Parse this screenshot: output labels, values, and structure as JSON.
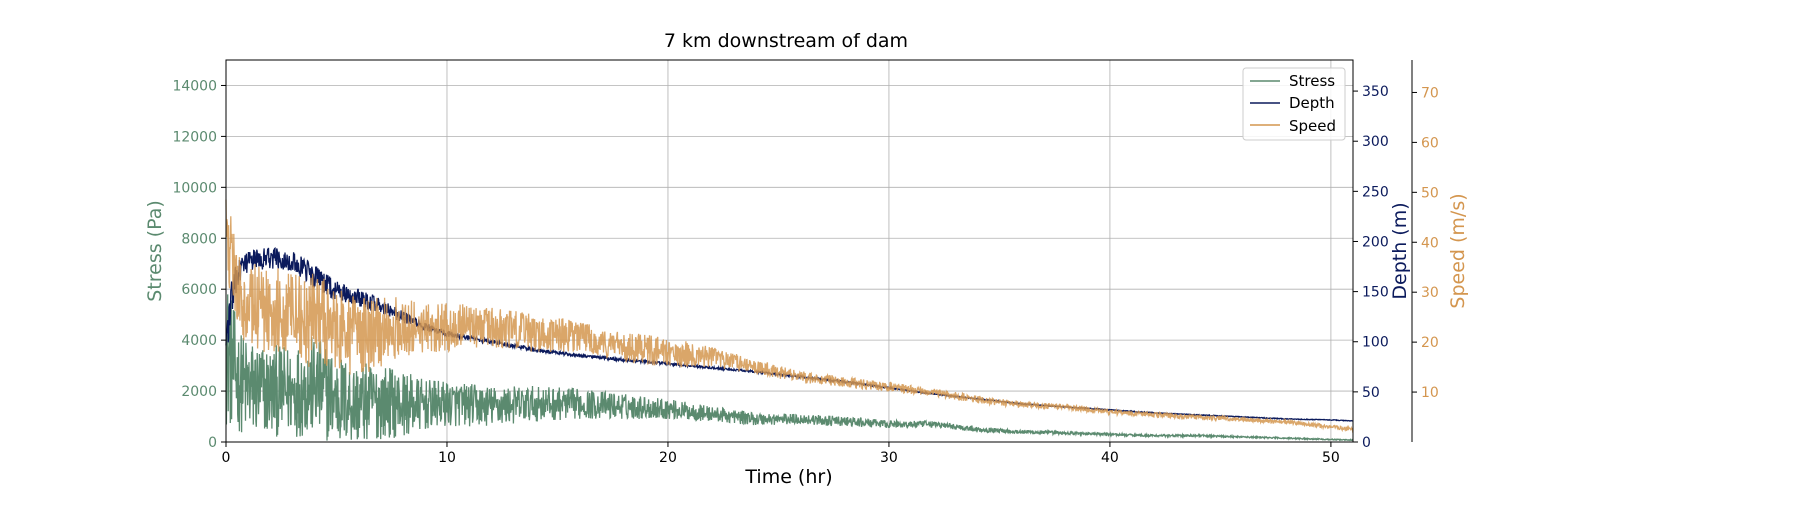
{
  "chart_data": {
    "type": "line",
    "title": "7 km downstream of dam",
    "xlabel": "Time (hr)",
    "xlim": [
      0,
      51
    ],
    "xticks": [
      "0",
      "10",
      "20",
      "30",
      "40",
      "50"
    ],
    "grid": true,
    "legend_position": "top-right",
    "axes": {
      "stress": {
        "label": "Stress (Pa)",
        "color": "#5b8a6f",
        "ylim": [
          0,
          15000
        ],
        "ticks": [
          "0",
          "2000",
          "4000",
          "6000",
          "8000",
          "10000",
          "12000",
          "14000"
        ]
      },
      "depth": {
        "label": "Depth (m)",
        "color": "#0b1a5c",
        "ylim": [
          0,
          381
        ],
        "ticks": [
          "0",
          "50",
          "100",
          "150",
          "200",
          "250",
          "300",
          "350"
        ]
      },
      "speed": {
        "label": "Speed (m/s)",
        "color": "#d4964f",
        "ylim": [
          0,
          76.5
        ],
        "ticks": [
          "10",
          "20",
          "30",
          "40",
          "50",
          "60",
          "70"
        ]
      }
    },
    "series": [
      {
        "name": "Stress",
        "axis": "stress",
        "color": "#5b8a6f",
        "x": [
          0,
          0.3,
          0.6,
          1,
          2,
          3,
          4,
          5,
          6,
          7,
          8,
          9,
          10,
          12,
          14,
          16,
          18,
          20,
          22,
          24,
          26,
          28,
          30,
          32,
          34,
          36,
          38,
          40,
          42,
          44,
          46,
          48,
          50,
          51
        ],
        "y": [
          3600,
          3000,
          2400,
          2100,
          2000,
          2000,
          2200,
          1700,
          1500,
          1600,
          1500,
          1450,
          1500,
          1400,
          1500,
          1500,
          1400,
          1300,
          1100,
          900,
          900,
          800,
          700,
          700,
          500,
          400,
          350,
          300,
          250,
          250,
          200,
          150,
          100,
          80
        ],
        "amp": [
          3000,
          2500,
          2000,
          2000,
          1800,
          1800,
          2000,
          1800,
          1600,
          1500,
          1300,
          1000,
          900,
          800,
          700,
          600,
          500,
          400,
          300,
          250,
          200,
          200,
          150,
          120,
          100,
          80,
          60,
          50,
          40,
          40,
          30,
          30,
          20,
          20
        ]
      },
      {
        "name": "Depth",
        "axis": "depth",
        "color": "#0b1a5c",
        "x": [
          0,
          0.3,
          0.6,
          1,
          2,
          3,
          4,
          5,
          6,
          7,
          8,
          9,
          10,
          12,
          14,
          16,
          18,
          20,
          22,
          24,
          26,
          28,
          30,
          32,
          34,
          36,
          38,
          40,
          42,
          44,
          46,
          48,
          50,
          51
        ],
        "y": [
          100,
          150,
          170,
          180,
          185,
          180,
          165,
          150,
          145,
          135,
          125,
          115,
          108,
          100,
          92,
          86,
          82,
          78,
          74,
          70,
          65,
          60,
          54,
          48,
          43,
          38,
          35,
          32,
          29,
          27,
          25,
          23,
          22,
          21
        ],
        "amp": [
          20,
          20,
          12,
          10,
          12,
          10,
          12,
          10,
          10,
          8,
          6,
          4,
          3,
          2,
          2,
          1.5,
          1.5,
          1.2,
          1,
          1,
          1,
          1,
          0.8,
          0.6,
          0.6,
          0.5,
          0.5,
          0.5,
          0.4,
          0.4,
          0.4,
          0.4,
          0.3,
          0.3
        ]
      },
      {
        "name": "Speed",
        "axis": "speed",
        "color": "#d4964f",
        "x": [
          0,
          0.3,
          0.6,
          1,
          2,
          3,
          4,
          5,
          6,
          7,
          8,
          9,
          10,
          12,
          14,
          16,
          18,
          20,
          22,
          24,
          26,
          28,
          30,
          32,
          34,
          36,
          38,
          40,
          42,
          44,
          46,
          48,
          50,
          51
        ],
        "y": [
          45,
          33,
          30,
          27,
          27,
          26,
          24,
          22,
          21,
          22,
          23,
          23,
          23,
          23,
          22,
          21,
          19,
          18,
          17,
          15,
          13,
          12,
          11,
          10,
          8.5,
          7.5,
          7,
          6,
          5.5,
          5,
          4.5,
          4,
          3,
          2.5
        ],
        "amp": [
          6,
          10,
          8,
          9,
          9,
          8,
          10,
          9,
          8,
          7,
          6,
          5,
          5,
          4,
          4,
          3,
          3,
          3,
          2,
          1.5,
          1.2,
          1,
          1,
          0.8,
          0.8,
          0.6,
          0.6,
          0.5,
          0.5,
          0.5,
          0.4,
          0.4,
          0.4,
          0.4
        ]
      }
    ]
  }
}
